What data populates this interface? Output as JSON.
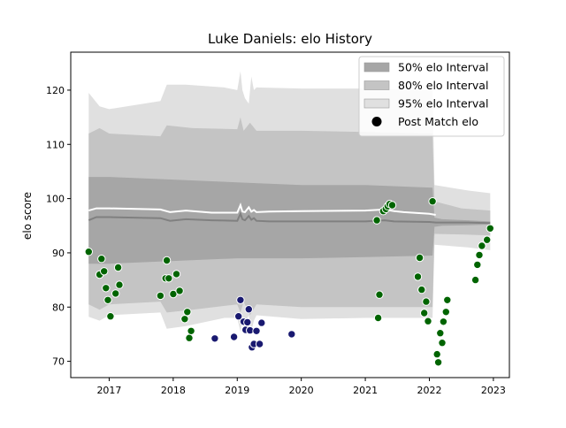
{
  "chart_data": {
    "type": "scatter",
    "title": "Luke Daniels: elo History",
    "xlabel": "",
    "ylabel": "elo score",
    "xlim": [
      2016.4,
      2023.25
    ],
    "ylim": [
      67,
      127
    ],
    "x_ticks": [
      2017,
      2018,
      2019,
      2020,
      2021,
      2022,
      2023
    ],
    "x_tick_labels": [
      "2017",
      "2018",
      "2019",
      "2020",
      "2021",
      "2022",
      "2023"
    ],
    "y_ticks": [
      70,
      80,
      90,
      100,
      110,
      120
    ],
    "y_tick_labels": [
      "70",
      "80",
      "90",
      "100",
      "110",
      "120"
    ],
    "legend_position": "top-right",
    "legend": [
      {
        "label": "50% elo Interval",
        "color": "#a6a6a6"
      },
      {
        "label": "80% elo Interval",
        "color": "#c4c4c4"
      },
      {
        "label": "95% elo Interval",
        "color": "#e0e0e0"
      },
      {
        "label": "Post Match elo",
        "color": "#000000"
      }
    ],
    "mean_line": {
      "x": [
        2016.68,
        2016.8,
        2017.0,
        2017.8,
        2017.95,
        2018.2,
        2018.6,
        2019.0,
        2019.05,
        2019.08,
        2019.12,
        2019.18,
        2019.22,
        2019.26,
        2019.3,
        2019.5,
        2020.0,
        2021.0,
        2021.3,
        2021.45,
        2022.0,
        2022.1,
        2022.3,
        2022.6,
        2022.95
      ],
      "y": [
        96.0,
        96.6,
        96.6,
        96.4,
        95.9,
        96.2,
        96.0,
        95.9,
        97.2,
        96.2,
        96.0,
        96.8,
        96.1,
        96.4,
        95.9,
        95.8,
        95.8,
        95.8,
        96.0,
        95.8,
        95.7,
        95.6,
        95.6,
        95.6,
        95.5
      ]
    },
    "white_line": {
      "x": [
        2016.68,
        2016.8,
        2017.0,
        2017.8,
        2017.95,
        2018.2,
        2018.6,
        2019.0,
        2019.05,
        2019.08,
        2019.12,
        2019.18,
        2019.22,
        2019.26,
        2019.3,
        2019.5,
        2020.0,
        2021.0,
        2021.3,
        2021.45,
        2021.6,
        2022.0,
        2022.1
      ],
      "y": [
        97.8,
        98.2,
        98.2,
        98.0,
        97.5,
        97.8,
        97.4,
        97.4,
        98.8,
        97.6,
        97.5,
        98.4,
        97.6,
        97.9,
        97.5,
        97.6,
        97.7,
        97.8,
        98.0,
        97.7,
        97.5,
        97.2,
        97.0
      ]
    },
    "band_50": {
      "x": [
        2016.68,
        2017.0,
        2018.0,
        2019.0,
        2020.0,
        2021.0,
        2022.05,
        2022.08,
        2022.2,
        2022.6,
        2022.95
      ],
      "upper": [
        104,
        104,
        103.5,
        103,
        102.5,
        102.5,
        102,
        96.5,
        96.2,
        96.0,
        95.8
      ],
      "lower": [
        88,
        88,
        88.5,
        89,
        89,
        89.2,
        89.5,
        94.8,
        95.0,
        95.1,
        95.2
      ]
    },
    "band_80": {
      "x": [
        2016.68,
        2016.85,
        2017.0,
        2017.8,
        2017.9,
        2018.3,
        2019.0,
        2019.05,
        2019.1,
        2019.2,
        2019.3,
        2020.0,
        2021.0,
        2022.05,
        2022.08,
        2022.5,
        2022.95
      ],
      "upper": [
        112,
        113,
        112,
        111.5,
        113.5,
        113,
        112.8,
        115,
        112.5,
        114,
        112.5,
        112.5,
        112.3,
        112.0,
        99.5,
        98.2,
        97.8
      ],
      "lower": [
        80.5,
        79.5,
        80.5,
        81,
        79,
        79.5,
        80.5,
        79,
        81,
        78.5,
        80.5,
        80,
        80,
        80,
        93.5,
        93.4,
        93.2
      ]
    },
    "band_95": {
      "x": [
        2016.68,
        2016.85,
        2017.0,
        2017.8,
        2017.9,
        2018.2,
        2018.8,
        2019.0,
        2019.05,
        2019.08,
        2019.12,
        2019.18,
        2019.22,
        2019.26,
        2019.3,
        2020.0,
        2021.0,
        2022.05,
        2022.08,
        2022.6,
        2022.95
      ],
      "upper": [
        119.5,
        117,
        116.5,
        118.0,
        121.0,
        121.0,
        120.5,
        120,
        123.5,
        120,
        118.5,
        117.5,
        122.5,
        120.0,
        120.5,
        120.3,
        120.3,
        120.0,
        102.5,
        101.5,
        101.0
      ],
      "lower": [
        78.2,
        77.5,
        78.5,
        79.0,
        76.0,
        76.5,
        78.0,
        78.0,
        75.5,
        78.0,
        77.0,
        78.5,
        75.5,
        77.5,
        78.5,
        77.8,
        78.0,
        78.0,
        91.5,
        91.0,
        90.5
      ]
    },
    "points_green": {
      "x": [
        2016.68,
        2016.85,
        2016.88,
        2016.92,
        2016.95,
        2016.98,
        2017.02,
        2017.1,
        2017.14,
        2017.16,
        2017.8,
        2017.88,
        2017.9,
        2017.93,
        2018.0,
        2018.05,
        2018.1,
        2018.18,
        2018.22,
        2018.25,
        2018.28,
        2021.18,
        2021.2,
        2021.22,
        2021.82,
        2021.85,
        2021.88,
        2021.92,
        2021.95,
        2021.98,
        2022.05,
        2022.12,
        2022.14,
        2022.17,
        2022.2,
        2022.22,
        2022.26,
        2022.28,
        2022.72,
        2022.75,
        2022.78,
        2022.82,
        2022.9,
        2022.95
      ],
      "y": [
        90.2,
        86.0,
        88.9,
        86.6,
        83.5,
        81.3,
        78.3,
        82.5,
        87.3,
        84.1,
        82.1,
        85.3,
        88.6,
        85.3,
        82.4,
        86.1,
        83.0,
        77.8,
        79.1,
        74.3,
        75.6,
        96.0,
        78.0,
        82.3,
        85.6,
        89.1,
        83.2,
        78.9,
        81.0,
        77.4,
        99.5,
        71.3,
        69.8,
        75.2,
        73.4,
        77.3,
        79.1,
        81.3,
        85.0,
        87.8,
        89.6,
        91.3,
        92.4,
        94.5
      ]
    },
    "points_navy": {
      "x": [
        2018.65,
        2018.95,
        2019.02,
        2019.05,
        2019.1,
        2019.13,
        2019.16,
        2019.18,
        2019.2,
        2019.23,
        2019.26,
        2019.3,
        2019.35,
        2019.38,
        2019.85
      ],
      "y": [
        74.2,
        74.5,
        78.3,
        81.3,
        77.3,
        75.8,
        77.2,
        79.6,
        75.7,
        72.6,
        73.2,
        75.6,
        73.2,
        77.1,
        75.0
      ]
    },
    "points_cluster_2021": {
      "x": [
        2021.28,
        2021.32,
        2021.35,
        2021.38,
        2021.42
      ],
      "y": [
        97.7,
        98.1,
        98.6,
        99.0,
        98.8
      ]
    },
    "colors": {
      "band_50": "#a6a6a6",
      "band_80": "#c4c4c4",
      "band_95": "#e0e0e0",
      "mean_line": "#808080",
      "white_line": "#ffffff",
      "points_green": "#006400",
      "points_navy": "#191970",
      "points_cluster": "#006400"
    }
  }
}
